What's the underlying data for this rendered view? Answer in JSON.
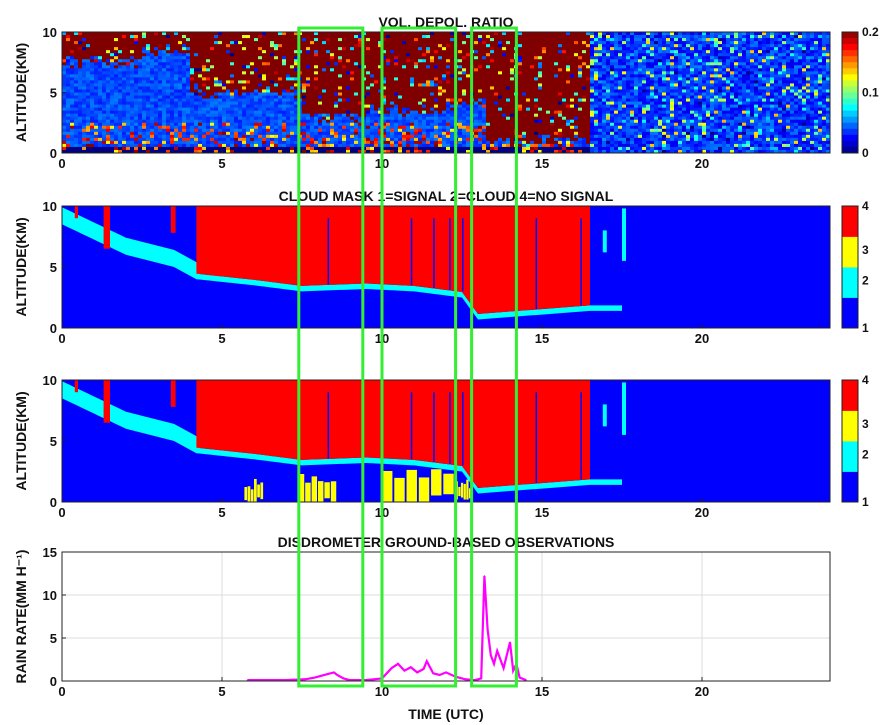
{
  "figure": {
    "xlabel": "TIME (UTC)"
  },
  "chart_data": [
    {
      "type": "heatmap",
      "title": "VOL. DEPOL. RATIO",
      "xlabel": "",
      "ylabel": "ALTITUDE(KM)",
      "xlim": [
        0,
        24
      ],
      "ylim": [
        0,
        10
      ],
      "xticks": [
        0,
        5,
        10,
        15,
        20
      ],
      "yticks": [
        0,
        5,
        10
      ],
      "colorbar": {
        "range": [
          0,
          0.2
        ],
        "ticks": [
          "0",
          "0.1",
          "0.2"
        ],
        "colormap": "jet"
      },
      "description_values": {
        "time_segments": [
          {
            "x0": 0.0,
            "x1": 2.5,
            "above_km": 7.5,
            "ratio": 0.2
          },
          {
            "x0": 2.5,
            "x1": 4.0,
            "above_km": 8.5,
            "ratio": 0.2
          },
          {
            "x0": 4.0,
            "x1": 7.5,
            "above_km": 5.0,
            "ratio": 0.2
          },
          {
            "x0": 7.5,
            "x1": 9.5,
            "above_km": 3.0,
            "ratio": 0.2
          },
          {
            "x0": 9.5,
            "x1": 12.0,
            "above_km": 3.5,
            "ratio": 0.2
          },
          {
            "x0": 12.0,
            "x1": 13.3,
            "above_km": 4.0,
            "ratio": 0.2
          },
          {
            "x0": 13.3,
            "x1": 16.5,
            "above_km": 1.0,
            "ratio": 0.2
          }
        ],
        "clear_air_ratio": 0.04,
        "noise_region": [
          16.5,
          24.0
        ]
      }
    },
    {
      "type": "heatmap",
      "title": "CLOUD MASK 1=SIGNAL 2=CLOUD 4=NO SIGNAL",
      "xlabel": "",
      "ylabel": "ALTITUDE(KM)",
      "xlim": [
        0,
        24
      ],
      "ylim": [
        0,
        10
      ],
      "xticks": [
        0,
        5,
        10,
        15,
        20
      ],
      "yticks": [
        0,
        5,
        10
      ],
      "colorbar": {
        "categories": [
          "1",
          "2",
          "3",
          "4"
        ],
        "colors": [
          "#0000ff",
          "#00ffff",
          "#ffff00",
          "#ff0000"
        ]
      },
      "cloud_base_km": [
        [
          0.0,
          8.5
        ],
        [
          0.8,
          7.5
        ],
        [
          2.0,
          6.0
        ],
        [
          3.5,
          5.0
        ],
        [
          4.2,
          4.0
        ],
        [
          6.0,
          3.5
        ],
        [
          7.5,
          3.0
        ],
        [
          9.5,
          3.2
        ],
        [
          11.0,
          3.0
        ],
        [
          12.5,
          2.5
        ],
        [
          13.0,
          0.7
        ],
        [
          15.0,
          1.1
        ],
        [
          16.5,
          1.4
        ]
      ],
      "no_signal_top_km": [
        [
          4.2,
          10
        ],
        [
          16.5,
          10
        ]
      ]
    },
    {
      "type": "heatmap",
      "title": "",
      "xlabel": "",
      "ylabel": "ALTITUDE(KM)",
      "xlim": [
        0,
        24
      ],
      "ylim": [
        0,
        10
      ],
      "xticks": [
        0,
        5,
        10,
        15,
        20
      ],
      "yticks": [
        0,
        5,
        10
      ],
      "colorbar": {
        "categories": [
          "1",
          "2",
          "3",
          "4"
        ],
        "colors": [
          "#0000ff",
          "#00ffff",
          "#ffff00",
          "#ff0000"
        ]
      },
      "category3_patches": [
        {
          "x0": 5.7,
          "x1": 6.3,
          "y0": 0.0,
          "y1": 2.3
        },
        {
          "x0": 7.4,
          "x1": 8.6,
          "y0": 0.0,
          "y1": 2.5
        },
        {
          "x0": 10.0,
          "x1": 12.3,
          "y0": 0.0,
          "y1": 2.8
        },
        {
          "x0": 12.3,
          "x1": 12.8,
          "y0": 0.2,
          "y1": 2.0
        }
      ]
    },
    {
      "type": "line",
      "title": "DISDROMETER GROUND-BASED OBSERVATIONS",
      "xlabel": "TIME (UTC)",
      "ylabel": "RAIN RATE(MM H⁻¹)",
      "xlim": [
        0,
        24
      ],
      "ylim": [
        0,
        15
      ],
      "xticks": [
        0,
        5,
        10,
        15,
        20
      ],
      "yticks": [
        0,
        5,
        10,
        15
      ],
      "grid": true,
      "series": [
        {
          "color": "#ff00ff",
          "x": [
            5.8,
            7.0,
            7.6,
            7.9,
            8.1,
            8.3,
            8.5,
            8.6,
            8.8,
            9.0,
            9.5,
            10.0,
            10.3,
            10.5,
            10.7,
            10.9,
            11.1,
            11.3,
            11.4,
            11.6,
            11.8,
            12.0,
            12.3,
            12.6,
            12.9,
            13.1,
            13.2,
            13.3,
            13.4,
            13.5,
            13.6,
            13.7,
            13.8,
            13.9,
            14.0,
            14.1,
            14.2,
            14.3,
            14.5
          ],
          "y": [
            0.1,
            0.1,
            0.2,
            0.4,
            0.6,
            0.8,
            1.0,
            0.7,
            0.3,
            0.1,
            0.1,
            0.3,
            1.5,
            2.0,
            1.2,
            1.6,
            1.0,
            1.4,
            2.3,
            0.9,
            0.7,
            1.0,
            0.5,
            0.2,
            0.1,
            0.3,
            12.2,
            6.0,
            3.0,
            2.0,
            3.5,
            2.5,
            1.5,
            3.0,
            4.5,
            1.2,
            2.0,
            0.4,
            0.1
          ]
        }
      ]
    }
  ],
  "highlight_boxes": [
    {
      "x0": 7.4,
      "x1": 9.4
    },
    {
      "x0": 10.0,
      "x1": 12.3
    },
    {
      "x0": 12.8,
      "x1": 14.2
    }
  ]
}
